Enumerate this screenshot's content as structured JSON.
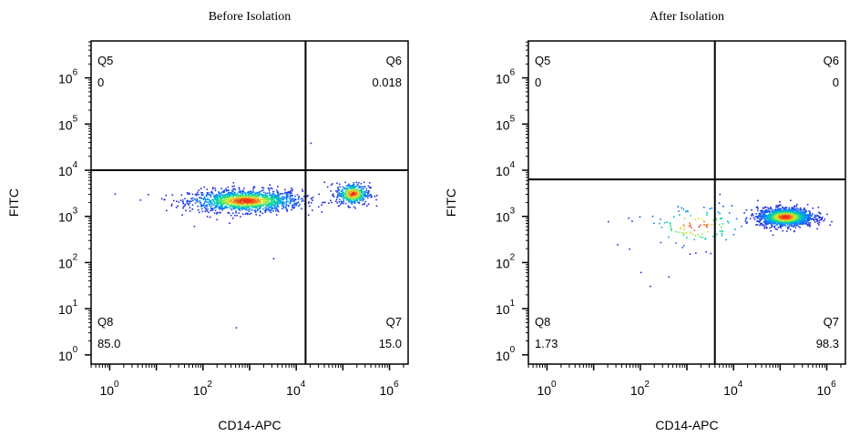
{
  "chart_data": [
    {
      "type": "scatter",
      "title": "Before Isolation",
      "xlabel": "CD14-APC",
      "ylabel": "FITC",
      "xscale": "log",
      "yscale": "log",
      "xlim_exp": [
        -0.4,
        6.4
      ],
      "ylim_exp": [
        -0.2,
        6.8
      ],
      "x_ticks": [
        {
          "base": "10",
          "exp": "0"
        },
        {
          "base": "10",
          "exp": "2"
        },
        {
          "base": "10",
          "exp": "4"
        },
        {
          "base": "10",
          "exp": "6"
        }
      ],
      "y_ticks": [
        {
          "base": "10",
          "exp": "0"
        },
        {
          "base": "10",
          "exp": "1"
        },
        {
          "base": "10",
          "exp": "2"
        },
        {
          "base": "10",
          "exp": "3"
        },
        {
          "base": "10",
          "exp": "4"
        },
        {
          "base": "10",
          "exp": "5"
        },
        {
          "base": "10",
          "exp": "6"
        }
      ],
      "gate": {
        "x_exp": 4.2,
        "y_exp": 4.0
      },
      "quadrants": [
        {
          "name": "Q5",
          "value": "0",
          "position": "top-left"
        },
        {
          "name": "Q6",
          "value": "0.018",
          "position": "top-right"
        },
        {
          "name": "Q8",
          "value": "85.0",
          "position": "bottom-left"
        },
        {
          "name": "Q7",
          "value": "15.0",
          "position": "bottom-right"
        }
      ],
      "populations": [
        {
          "cx_exp": 2.9,
          "cy_exp": 3.35,
          "sx": 0.6,
          "sy": 0.12,
          "n": 1400
        },
        {
          "cx_exp": 5.2,
          "cy_exp": 3.5,
          "sx": 0.18,
          "sy": 0.12,
          "n": 420
        }
      ],
      "outliers": [
        [
          0.1,
          3.5
        ],
        [
          4.3,
          4.6
        ],
        [
          2.7,
          0.6
        ],
        [
          3.5,
          2.1
        ],
        [
          1.8,
          2.8
        ]
      ]
    },
    {
      "type": "scatter",
      "title": "After Isolation",
      "xlabel": "CD14-APC",
      "ylabel": "FITC",
      "xscale": "log",
      "yscale": "log",
      "xlim_exp": [
        -0.4,
        6.4
      ],
      "ylim_exp": [
        -0.2,
        6.8
      ],
      "x_ticks": [
        {
          "base": "10",
          "exp": "0"
        },
        {
          "base": "10",
          "exp": "2"
        },
        {
          "base": "10",
          "exp": "4"
        },
        {
          "base": "10",
          "exp": "6"
        }
      ],
      "y_ticks": [
        {
          "base": "10",
          "exp": "0"
        },
        {
          "base": "10",
          "exp": "1"
        },
        {
          "base": "10",
          "exp": "2"
        },
        {
          "base": "10",
          "exp": "3"
        },
        {
          "base": "10",
          "exp": "4"
        },
        {
          "base": "10",
          "exp": "5"
        },
        {
          "base": "10",
          "exp": "6"
        }
      ],
      "gate": {
        "x_exp": 3.6,
        "y_exp": 3.8
      },
      "quadrants": [
        {
          "name": "Q5",
          "value": "0",
          "position": "top-left"
        },
        {
          "name": "Q6",
          "value": "0",
          "position": "top-right"
        },
        {
          "name": "Q8",
          "value": "1.73",
          "position": "bottom-left"
        },
        {
          "name": "Q7",
          "value": "98.3",
          "position": "bottom-right"
        }
      ],
      "populations": [
        {
          "cx_exp": 5.1,
          "cy_exp": 3.0,
          "sx": 0.3,
          "sy": 0.1,
          "n": 1300
        },
        {
          "cx_exp": 3.2,
          "cy_exp": 2.8,
          "sx": 0.6,
          "sy": 0.25,
          "n": 120
        }
      ],
      "outliers": [
        [
          1.3,
          2.9
        ],
        [
          2.0,
          1.8
        ],
        [
          2.2,
          1.5
        ],
        [
          2.6,
          1.7
        ],
        [
          1.5,
          2.4
        ]
      ]
    }
  ]
}
